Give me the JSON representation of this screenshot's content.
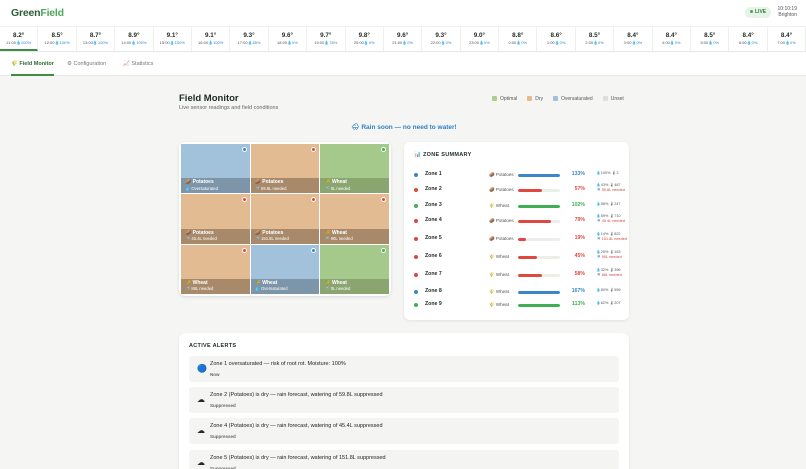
{
  "app": {
    "logo_part1": "Green",
    "logo_part2": "Field",
    "live_label": "LIVE",
    "time": "10:10:19",
    "location": "Brighton"
  },
  "forecast": [
    {
      "temp": "8.2°",
      "time": "11:00",
      "precip": "100%",
      "selected": true
    },
    {
      "temp": "8.5°",
      "time": "12:00",
      "precip": "100%"
    },
    {
      "temp": "8.7°",
      "time": "13:00",
      "precip": "100%"
    },
    {
      "temp": "8.9°",
      "time": "14:00",
      "precip": "100%"
    },
    {
      "temp": "9.1°",
      "time": "15:00",
      "precip": "100%"
    },
    {
      "temp": "9.1°",
      "time": "16:00",
      "precip": "100%"
    },
    {
      "temp": "9.3°",
      "time": "17:00",
      "precip": "85%"
    },
    {
      "temp": "9.6°",
      "time": "18:00",
      "precip": "0%"
    },
    {
      "temp": "9.7°",
      "time": "19:00",
      "precip": "78%"
    },
    {
      "temp": "9.8°",
      "time": "20:00",
      "precip": "0%"
    },
    {
      "temp": "9.6°",
      "time": "21:00",
      "precip": "0%"
    },
    {
      "temp": "9.3°",
      "time": "22:00",
      "precip": "0%"
    },
    {
      "temp": "9.0°",
      "time": "23:00",
      "precip": "0%"
    },
    {
      "temp": "8.8°",
      "time": "0:00",
      "precip": "0%"
    },
    {
      "temp": "8.6°",
      "time": "1:00",
      "precip": "0%"
    },
    {
      "temp": "8.5°",
      "time": "2:00",
      "precip": "0%"
    },
    {
      "temp": "8.4°",
      "time": "3:00",
      "precip": "0%"
    },
    {
      "temp": "8.4°",
      "time": "4:00",
      "precip": "0%"
    },
    {
      "temp": "8.5°",
      "time": "5:00",
      "precip": "0%"
    },
    {
      "temp": "8.4°",
      "time": "6:00",
      "precip": "0%"
    },
    {
      "temp": "8.4°",
      "time": "7:00",
      "precip": "0%"
    }
  ],
  "tabs": [
    {
      "icon": "🌾",
      "label": "Field Monitor",
      "active": true
    },
    {
      "icon": "⚙",
      "label": "Configuration"
    },
    {
      "icon": "📈",
      "label": "Statistics"
    }
  ],
  "page": {
    "title": "Field Monitor",
    "subtitle": "Live sensor readings and field conditions",
    "banner": "🌧 Rain soon — no need to water!"
  },
  "legend": [
    {
      "label": "Optimal",
      "color": "#a9cf8f"
    },
    {
      "label": "Dry",
      "color": "#e7b98c"
    },
    {
      "label": "Oversaturated",
      "color": "#9fbfdc"
    },
    {
      "label": "Unset",
      "color": "#dddddd"
    }
  ],
  "colors": {
    "optimal_cell": "#a5c98b",
    "optimal_label": "#8aa56f",
    "dry_cell": "#e3bb93",
    "dry_label": "#a88a6b",
    "over_cell": "#a2c1da",
    "over_label": "#7c95a8",
    "green": "#3fae55",
    "red": "#e0473e",
    "blue": "#3a86c8"
  },
  "field_cells": [
    {
      "crop": "🥔 Potatoes",
      "need": "💧 Oversaturated",
      "state": "over"
    },
    {
      "crop": "🥔 Potatoes",
      "need": "🚿 59.8L needed",
      "state": "dry"
    },
    {
      "crop": "🌾 Wheat",
      "need": "🚿 0L needed",
      "state": "optimal"
    },
    {
      "crop": "🥔 Potatoes",
      "need": "🚿 45.4L needed",
      "state": "dry"
    },
    {
      "crop": "🥔 Potatoes",
      "need": "🚿 151.8L needed",
      "state": "dry"
    },
    {
      "crop": "🌾 Wheat",
      "need": "🚿 90L needed",
      "state": "dry"
    },
    {
      "crop": "🌾 Wheat",
      "need": "🚿 86L needed",
      "state": "dry"
    },
    {
      "crop": "🌾 Wheat",
      "need": "💧 Oversaturated",
      "state": "over"
    },
    {
      "crop": "🌾 Wheat",
      "need": "🚿 0L needed",
      "state": "optimal"
    }
  ],
  "summary": {
    "title": "📊 ZONE SUMMARY",
    "zones": [
      {
        "name": "Zone 1",
        "crop": "🥔 Potatoes",
        "pct": "133%",
        "level": 1.0,
        "status": "blue",
        "line1": "💧100% 🌡3",
        "line2": ""
      },
      {
        "name": "Zone 2",
        "crop": "🥔 Potatoes",
        "pct": "57%",
        "level": 0.57,
        "status": "red",
        "line1": "💧43% 🌡487",
        "line2": "🚿 59.8L needed"
      },
      {
        "name": "Zone 3",
        "crop": "🌾 Wheat",
        "pct": "102%",
        "level": 1.0,
        "status": "green",
        "line1": "💧58% 🌡247",
        "line2": ""
      },
      {
        "name": "Zone 4",
        "crop": "🥔 Potatoes",
        "pct": "79%",
        "level": 0.79,
        "status": "red",
        "line1": "💧59% 🌡710",
        "line2": "🚿 45.4L needed"
      },
      {
        "name": "Zone 5",
        "crop": "🥔 Potatoes",
        "pct": "19%",
        "level": 0.19,
        "status": "red",
        "line1": "💧14% 🌡822",
        "line2": "🚿 151.8L needed"
      },
      {
        "name": "Zone 6",
        "crop": "🌾 Wheat",
        "pct": "45%",
        "level": 0.45,
        "status": "red",
        "line1": "💧25% 🌡163",
        "line2": "🚿 90L needed"
      },
      {
        "name": "Zone 7",
        "crop": "🌾 Wheat",
        "pct": "58%",
        "level": 0.58,
        "status": "red",
        "line1": "💧32% 🌡396",
        "line2": "🚿 86L needed"
      },
      {
        "name": "Zone 8",
        "crop": "🌾 Wheat",
        "pct": "167%",
        "level": 1.0,
        "status": "blue",
        "line1": "💧80% 🌡559",
        "line2": ""
      },
      {
        "name": "Zone 9",
        "crop": "🌾 Wheat",
        "pct": "113%",
        "level": 1.0,
        "status": "green",
        "line1": "💧62% 🌡207",
        "line2": ""
      }
    ]
  },
  "alerts": {
    "title": "ACTIVE ALERTS",
    "items": [
      {
        "icon": "🔵",
        "text": "Zone 1 oversaturated — risk of root rot. Moisture: 100%",
        "status": "Now"
      },
      {
        "icon": "☁",
        "text": "Zone 2 (Potatoes) is dry — rain forecast, watering of 59.8L suppressed",
        "status": "Suppressed"
      },
      {
        "icon": "☁",
        "text": "Zone 4 (Potatoes) is dry — rain forecast, watering of 45.4L suppressed",
        "status": "Suppressed"
      },
      {
        "icon": "☁",
        "text": "Zone 5 (Potatoes) is dry — rain forecast, watering of 151.8L suppressed",
        "status": "Suppressed"
      }
    ]
  }
}
